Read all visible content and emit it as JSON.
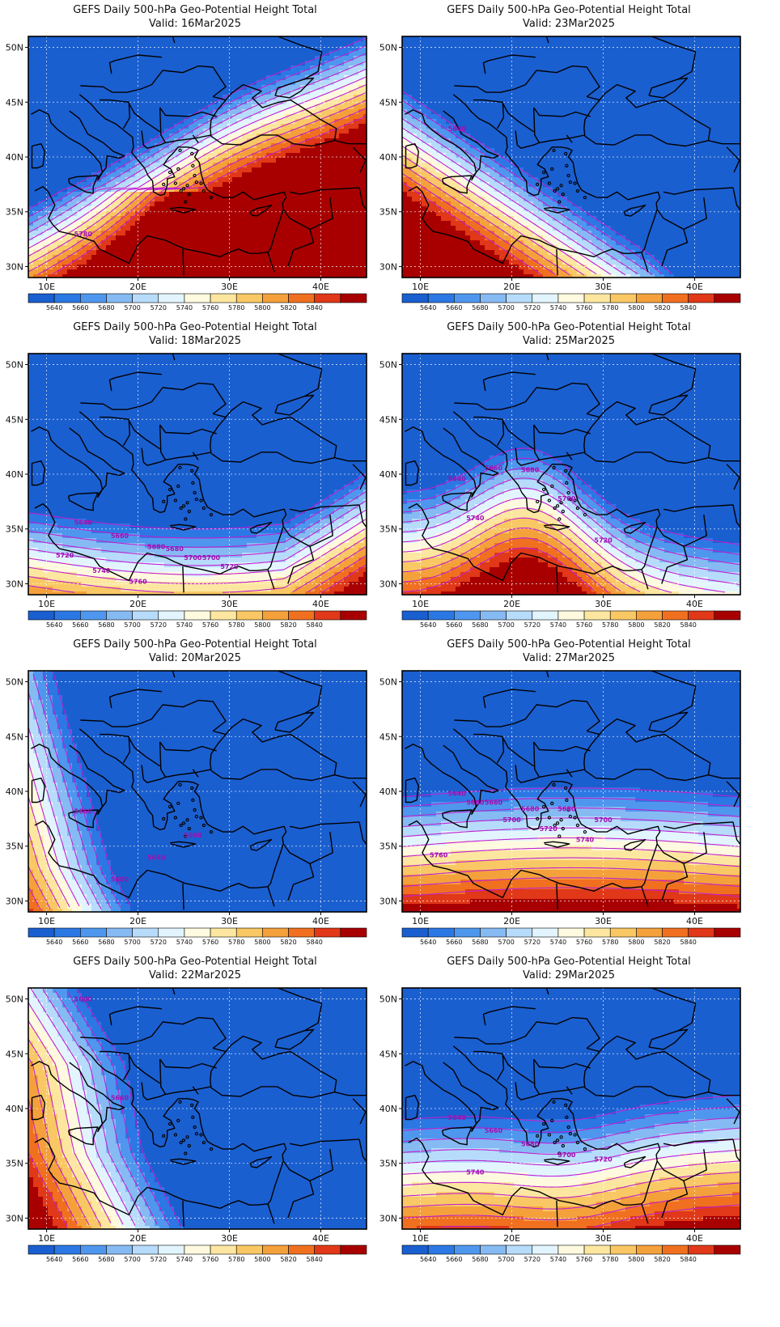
{
  "title": "GEFS Daily 500-hPa Geo-Potential Height Total",
  "valid_prefix": "Valid:",
  "panels": [
    {
      "valid": "16Mar2025",
      "labels": [
        "5780"
      ],
      "scenario": "ridge_high"
    },
    {
      "valid": "23Mar2025",
      "labels": [
        "5640"
      ],
      "scenario": "trough_east"
    },
    {
      "valid": "18Mar2025",
      "labels": [
        "5640",
        "5660",
        "5680",
        "5700",
        "5720",
        "5740",
        "5760",
        "5680",
        "5700",
        "5720"
      ],
      "scenario": "zonal_low"
    },
    {
      "valid": "25Mar2025",
      "labels": [
        "5640",
        "5660",
        "5680",
        "5700",
        "5720",
        "5740"
      ],
      "scenario": "trough_mid"
    },
    {
      "valid": "20Mar2025",
      "labels": [
        "5660",
        "5680",
        "5640",
        "5660"
      ],
      "scenario": "trough_deep"
    },
    {
      "valid": "27Mar2025",
      "labels": [
        "5640",
        "5660",
        "5680",
        "5680",
        "5700",
        "5660",
        "5700",
        "5720",
        "5740",
        "5760"
      ],
      "scenario": "zonal_mid"
    },
    {
      "valid": "22Mar2025",
      "labels": [
        "5640",
        "5660"
      ],
      "scenario": "trough_west"
    },
    {
      "valid": "29Mar2025",
      "labels": [
        "5640",
        "5660",
        "5680",
        "5700",
        "5720",
        "5740"
      ],
      "scenario": "zonal_south"
    }
  ],
  "lat_ticks": [
    "50N",
    "45N",
    "40N",
    "35N",
    "30N"
  ],
  "lon_ticks": [
    "10E",
    "20E",
    "30E",
    "40E"
  ],
  "colorbar": {
    "labels": [
      "5640",
      "5660",
      "5680",
      "5700",
      "5720",
      "5740",
      "5760",
      "5780",
      "5800",
      "5820",
      "5840"
    ],
    "colors": [
      "#1a5fd0",
      "#2b78e4",
      "#4f97ee",
      "#86baf3",
      "#b7dcfb",
      "#e2f5ff",
      "#fffadf",
      "#fde7a0",
      "#f9c864",
      "#f4a13c",
      "#f07020",
      "#e03818",
      "#a80000"
    ]
  },
  "contour_color": "#c020d0",
  "coast_color": "#000000"
}
